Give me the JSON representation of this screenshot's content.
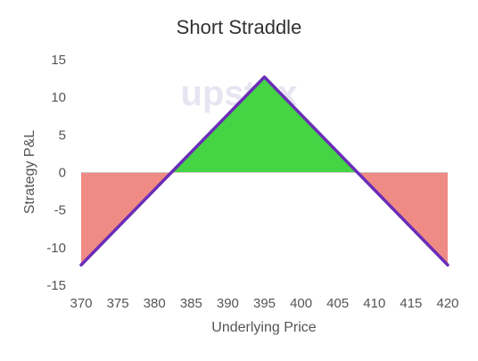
{
  "chart_data": {
    "type": "area",
    "title": "Short Straddle",
    "xlabel": "Underlying Price",
    "ylabel": "Strategy P&L",
    "x": [
      370,
      395,
      420
    ],
    "y": [
      -12.3,
      12.7,
      -12.3
    ],
    "breakevens": [
      382.3,
      407.7
    ],
    "xlim": [
      370,
      420
    ],
    "ylim": [
      -15,
      15
    ],
    "xticks": [
      370,
      375,
      380,
      385,
      390,
      395,
      400,
      405,
      410,
      415,
      420
    ],
    "yticks": [
      -15,
      -10,
      -5,
      0,
      5,
      10,
      15
    ],
    "grid": false,
    "watermark": "upstox",
    "colors": {
      "line": "#6a2db8",
      "profit_fill": "#44d444",
      "loss_fill": "#ef8a85",
      "watermark": "#e8e4f2",
      "text": "#555555",
      "title": "#333333",
      "zero_line": "#cccccc"
    }
  }
}
